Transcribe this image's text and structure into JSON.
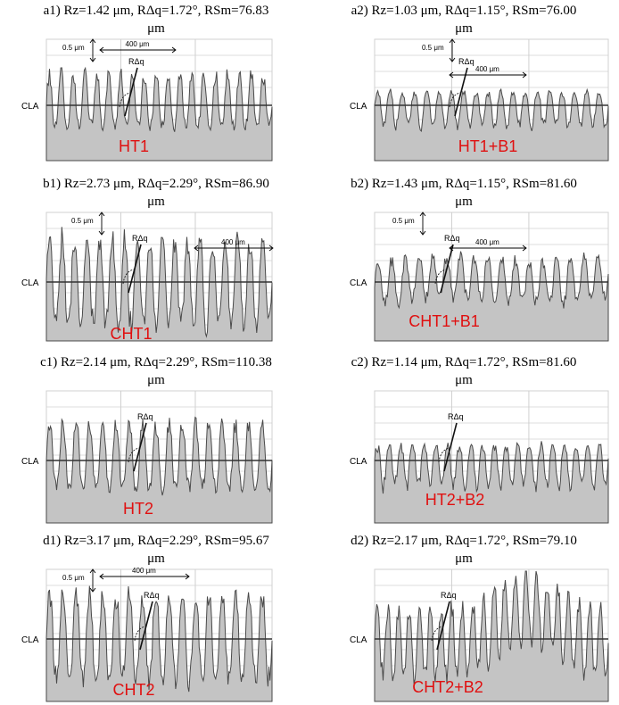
{
  "panels": [
    {
      "id": "a1",
      "caption_line1": "a1) Rz=1.42 μm, RΔq=1.72°, RSm=76.83",
      "caption_line2": "μm",
      "sample": "HT1",
      "scale_v": "0.5 μm",
      "scale_h": "400 μm",
      "slope_label": "RΔq",
      "baseline_label": "CLA"
    },
    {
      "id": "a2",
      "caption_line1": "a2) Rz=1.03 μm, RΔq=1.15°, RSm=76.00",
      "caption_line2": "μm",
      "sample": "HT1+B1",
      "scale_v": "0.5 μm",
      "scale_h": "400 μm",
      "slope_label": "RΔq",
      "baseline_label": "CLA"
    },
    {
      "id": "b1",
      "caption_line1": "b1) Rz=2.73 μm, RΔq=2.29°, RSm=86.90",
      "caption_line2": "μm",
      "sample": "CHT1",
      "scale_v": "0.5 μm",
      "scale_h": "400 μm",
      "slope_label": "RΔq",
      "baseline_label": "CLA"
    },
    {
      "id": "b2",
      "caption_line1": "b2) Rz=1.43 μm, RΔq=1.15°, RSm=81.60",
      "caption_line2": "μm",
      "sample": "CHT1+B1",
      "scale_v": "0.5 μm",
      "scale_h": "400 μm",
      "slope_label": "RΔq",
      "baseline_label": "CLA"
    },
    {
      "id": "c1",
      "caption_line1": "c1) Rz=2.14 μm, RΔq=2.29°, RSm=110.38",
      "caption_line2": "μm",
      "sample": "HT2",
      "scale_v": "",
      "scale_h": "",
      "slope_label": "RΔq",
      "baseline_label": "CLA"
    },
    {
      "id": "c2",
      "caption_line1": "c2) Rz=1.14 μm, RΔq=1.72°, RSm=81.60",
      "caption_line2": "μm",
      "sample": "HT2+B2",
      "scale_v": "",
      "scale_h": "",
      "slope_label": "RΔq",
      "baseline_label": "CLA"
    },
    {
      "id": "d1",
      "caption_line1": "d1) Rz=3.17 μm, RΔq=2.29°, RSm=95.67",
      "caption_line2": "μm",
      "sample": "CHT2",
      "scale_v": "0.5 μm",
      "scale_h": "400 μm",
      "slope_label": "RΔq",
      "baseline_label": "CLA"
    },
    {
      "id": "d2",
      "caption_line1": "d2) Rz=2.17 μm, RΔq=1.72°, RSm=79.10",
      "caption_line2": "μm",
      "sample": "CHT2+B2",
      "scale_v": "",
      "scale_h": "",
      "slope_label": "RΔq",
      "baseline_label": "CLA"
    }
  ],
  "colors": {
    "profile_fill": "#c4c4c4",
    "profile_stroke": "#4a4a4a",
    "grid": "#d0d0d0",
    "sample_label": "#e01010",
    "baseline": "#333333"
  }
}
